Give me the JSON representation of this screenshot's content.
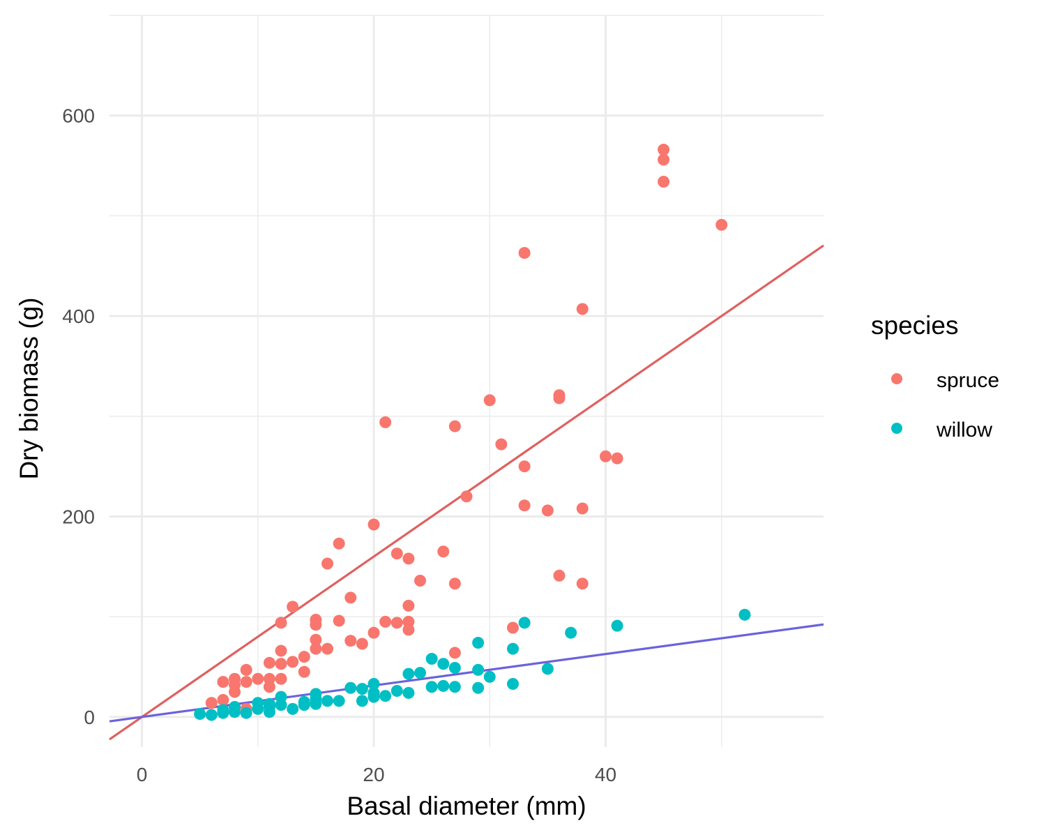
{
  "chart_data": {
    "type": "scatter",
    "title": "",
    "xlabel": "Basal diameter (mm)",
    "ylabel": "Dry biomass (g)",
    "xlim": [
      -2.8,
      58.8
    ],
    "ylim": [
      -30,
      700
    ],
    "x_ticks": [
      0,
      20,
      40
    ],
    "x_tick_labels": [
      "0",
      "20",
      "40"
    ],
    "y_ticks": [
      0,
      200,
      400,
      600
    ],
    "y_tick_labels": [
      "0",
      "200",
      "400",
      "600"
    ],
    "x_minor_ticks": [
      10,
      30,
      50
    ],
    "y_minor_ticks": [
      100,
      300,
      500,
      700
    ],
    "grid": true,
    "legend": {
      "title": "species",
      "position": "right"
    },
    "series": [
      {
        "name": "spruce",
        "color": "#F8766D",
        "points": [
          [
            6,
            14
          ],
          [
            7,
            17
          ],
          [
            7,
            35
          ],
          [
            8,
            25
          ],
          [
            8,
            32
          ],
          [
            8,
            38
          ],
          [
            9,
            8
          ],
          [
            9,
            35
          ],
          [
            9,
            47
          ],
          [
            10,
            38
          ],
          [
            11,
            30
          ],
          [
            11,
            38
          ],
          [
            11,
            54
          ],
          [
            12,
            38
          ],
          [
            12,
            53
          ],
          [
            12,
            66
          ],
          [
            12,
            94
          ],
          [
            13,
            55
          ],
          [
            13,
            110
          ],
          [
            14,
            45
          ],
          [
            14,
            60
          ],
          [
            15,
            68
          ],
          [
            15,
            77
          ],
          [
            15,
            92
          ],
          [
            15,
            97
          ],
          [
            16,
            68
          ],
          [
            16,
            153
          ],
          [
            17,
            96
          ],
          [
            17,
            173
          ],
          [
            18,
            76
          ],
          [
            18,
            119
          ],
          [
            19,
            73
          ],
          [
            20,
            84
          ],
          [
            20,
            192
          ],
          [
            21,
            95
          ],
          [
            21,
            294
          ],
          [
            22,
            94
          ],
          [
            22,
            163
          ],
          [
            23,
            87
          ],
          [
            23,
            95
          ],
          [
            23,
            111
          ],
          [
            23,
            158
          ],
          [
            24,
            136
          ],
          [
            26,
            165
          ],
          [
            27,
            64
          ],
          [
            27,
            133
          ],
          [
            27,
            290
          ],
          [
            28,
            220
          ],
          [
            30,
            316
          ],
          [
            31,
            272
          ],
          [
            32,
            89
          ],
          [
            33,
            211
          ],
          [
            33,
            250
          ],
          [
            33,
            463
          ],
          [
            35,
            206
          ],
          [
            36,
            141
          ],
          [
            36,
            318
          ],
          [
            36,
            321
          ],
          [
            38,
            133
          ],
          [
            38,
            208
          ],
          [
            38,
            407
          ],
          [
            40,
            260
          ],
          [
            41,
            258
          ],
          [
            45,
            534
          ],
          [
            45,
            556
          ],
          [
            45,
            566
          ],
          [
            50,
            491
          ]
        ],
        "fit_line": {
          "intercept": 0,
          "slope": 8.0
        }
      },
      {
        "name": "willow",
        "color": "#00BFC4",
        "points": [
          [
            5,
            3
          ],
          [
            6,
            2
          ],
          [
            7,
            4
          ],
          [
            7,
            7
          ],
          [
            8,
            5
          ],
          [
            8,
            10
          ],
          [
            9,
            4
          ],
          [
            10,
            8
          ],
          [
            10,
            14
          ],
          [
            11,
            5
          ],
          [
            11,
            10
          ],
          [
            11,
            13
          ],
          [
            12,
            12
          ],
          [
            12,
            20
          ],
          [
            13,
            8
          ],
          [
            14,
            12
          ],
          [
            14,
            15
          ],
          [
            15,
            13
          ],
          [
            15,
            18
          ],
          [
            15,
            23
          ],
          [
            16,
            16
          ],
          [
            17,
            16
          ],
          [
            18,
            29
          ],
          [
            19,
            16
          ],
          [
            19,
            28
          ],
          [
            20,
            20
          ],
          [
            20,
            24
          ],
          [
            20,
            33
          ],
          [
            21,
            21
          ],
          [
            22,
            26
          ],
          [
            23,
            24
          ],
          [
            23,
            43
          ],
          [
            24,
            44
          ],
          [
            25,
            30
          ],
          [
            25,
            58
          ],
          [
            26,
            31
          ],
          [
            26,
            53
          ],
          [
            27,
            30
          ],
          [
            27,
            49
          ],
          [
            29,
            29
          ],
          [
            29,
            47
          ],
          [
            29,
            74
          ],
          [
            30,
            40
          ],
          [
            32,
            33
          ],
          [
            32,
            68
          ],
          [
            33,
            94
          ],
          [
            35,
            48
          ],
          [
            37,
            84
          ],
          [
            41,
            91
          ],
          [
            52,
            102
          ]
        ],
        "fit_line": {
          "intercept": 0,
          "slope": 1.57
        }
      }
    ],
    "fit_line_colors": {
      "spruce": "#E06060",
      "willow": "#6A63DC"
    }
  }
}
